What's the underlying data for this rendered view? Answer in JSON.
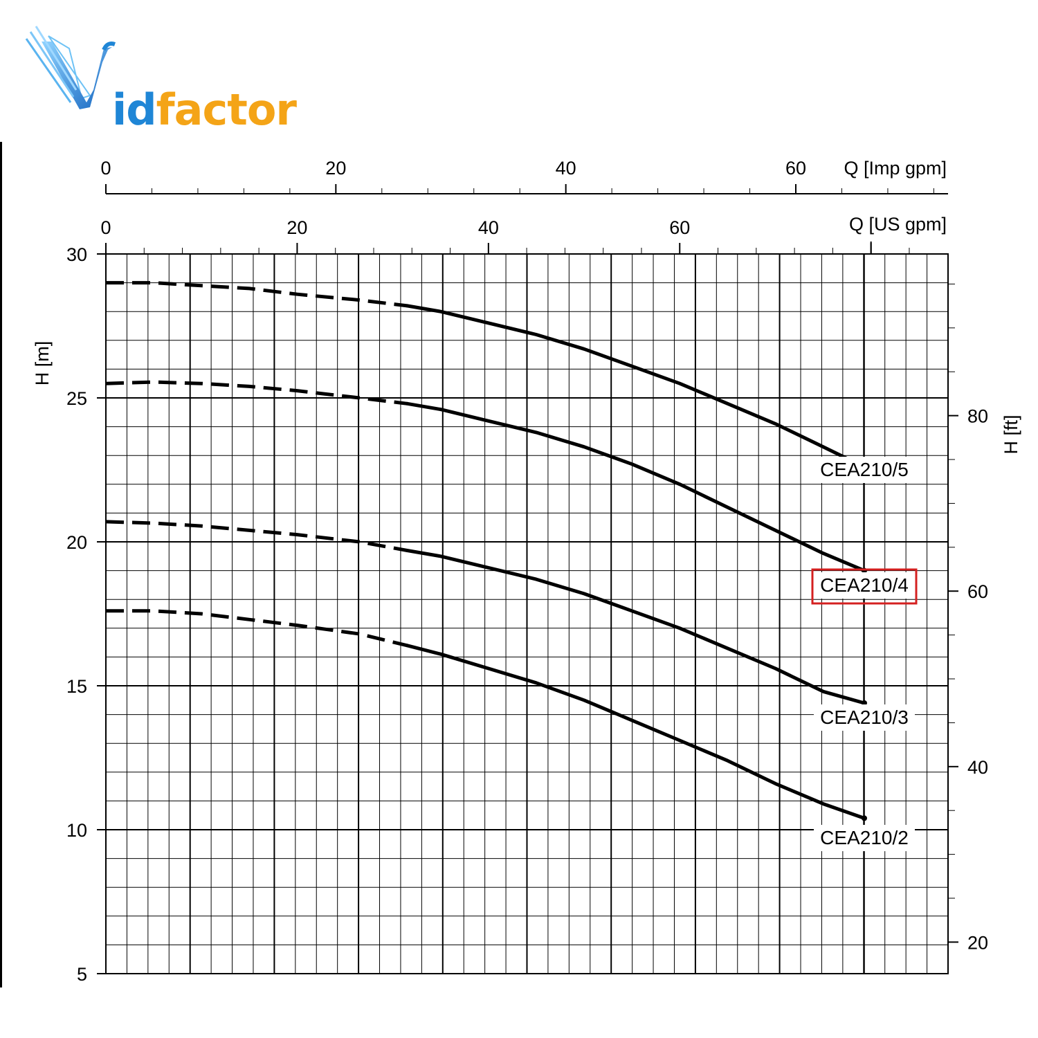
{
  "logo": {
    "name": "logo-wordmark",
    "text_id": "id",
    "text_factor": "factor",
    "colors": {
      "blue": "#1f86d6",
      "orange": "#f4a417"
    }
  },
  "chart_data": {
    "type": "line",
    "title": "",
    "xlabel": "Q [US gpm]",
    "xlabel_top": "Q [Imp gpm]",
    "ylabel": "H [m]",
    "ylabel_right": "H [ft]",
    "xlim": [
      0,
      88
    ],
    "ylim": [
      5,
      30
    ],
    "x_ticks": [
      0,
      20,
      40,
      60
    ],
    "x_top_ticks": [
      0,
      20,
      40,
      60
    ],
    "y_ticks": [
      5,
      10,
      15,
      20,
      25,
      30
    ],
    "y_right_ticks": [
      20,
      40,
      60,
      80
    ],
    "grid": true,
    "dashed_until_x": 31.5,
    "series": [
      {
        "name": "CEA210/5",
        "highlight": false,
        "x": [
          0,
          5,
          10,
          15,
          20,
          26.5,
          31.5,
          35,
          40,
          45,
          50,
          55,
          60,
          65,
          70,
          75,
          79.3
        ],
        "y": [
          29.0,
          29.0,
          28.9,
          28.8,
          28.6,
          28.4,
          28.2,
          28.0,
          27.6,
          27.2,
          26.7,
          26.1,
          25.5,
          24.8,
          24.1,
          23.3,
          22.6
        ]
      },
      {
        "name": "CEA210/4",
        "highlight": true,
        "highlight_color": "#d42020",
        "x": [
          0,
          5,
          10,
          15,
          20,
          26.5,
          31.5,
          35,
          40,
          45,
          50,
          55,
          60,
          65,
          70,
          75,
          79.3
        ],
        "y": [
          25.5,
          25.55,
          25.5,
          25.4,
          25.25,
          25.0,
          24.8,
          24.6,
          24.2,
          23.8,
          23.3,
          22.7,
          22.0,
          21.2,
          20.4,
          19.6,
          19.0
        ]
      },
      {
        "name": "CEA210/3",
        "highlight": false,
        "x": [
          0,
          5,
          10,
          15,
          20,
          26.5,
          31.5,
          35,
          40,
          45,
          50,
          55,
          60,
          65,
          70,
          75,
          79.3
        ],
        "y": [
          20.7,
          20.65,
          20.55,
          20.4,
          20.25,
          20.0,
          19.7,
          19.5,
          19.1,
          18.7,
          18.2,
          17.6,
          17.0,
          16.3,
          15.6,
          14.8,
          14.4
        ]
      },
      {
        "name": "CEA210/2",
        "highlight": false,
        "x": [
          0,
          5,
          10,
          15,
          20,
          26.5,
          31.5,
          35,
          40,
          45,
          50,
          55,
          60,
          65,
          70,
          75,
          79.3
        ],
        "y": [
          17.6,
          17.6,
          17.5,
          17.3,
          17.1,
          16.8,
          16.4,
          16.1,
          15.6,
          15.1,
          14.5,
          13.8,
          13.1,
          12.4,
          11.6,
          10.9,
          10.4
        ]
      }
    ]
  }
}
